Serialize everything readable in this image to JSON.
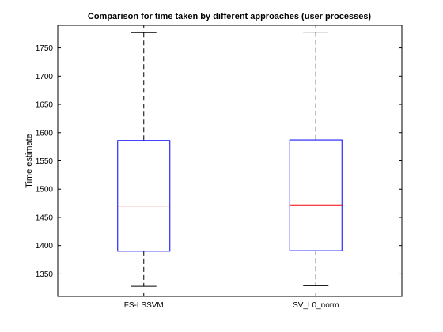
{
  "chart_data": {
    "type": "boxplot",
    "title": "Comparison for time taken by different approaches (user processes)",
    "xlabel": "",
    "ylabel": "Time estimate",
    "ylim": [
      1310,
      1790
    ],
    "yticks": [
      1350,
      1400,
      1450,
      1500,
      1550,
      1600,
      1650,
      1700,
      1750
    ],
    "categories": [
      "FS-LSSVM",
      "SV_L0_norm"
    ],
    "boxes": [
      {
        "label": "FS-LSSVM",
        "min": 1328,
        "q1": 1390,
        "median": 1470,
        "q3": 1586,
        "max": 1777
      },
      {
        "label": "SV_L0_norm",
        "min": 1329,
        "q1": 1391,
        "median": 1472,
        "q3": 1587,
        "max": 1778
      }
    ],
    "colors": {
      "box": "#0000ff",
      "median": "#ff0000",
      "whisker": "#000000",
      "axes": "#000000"
    },
    "grid": false
  }
}
